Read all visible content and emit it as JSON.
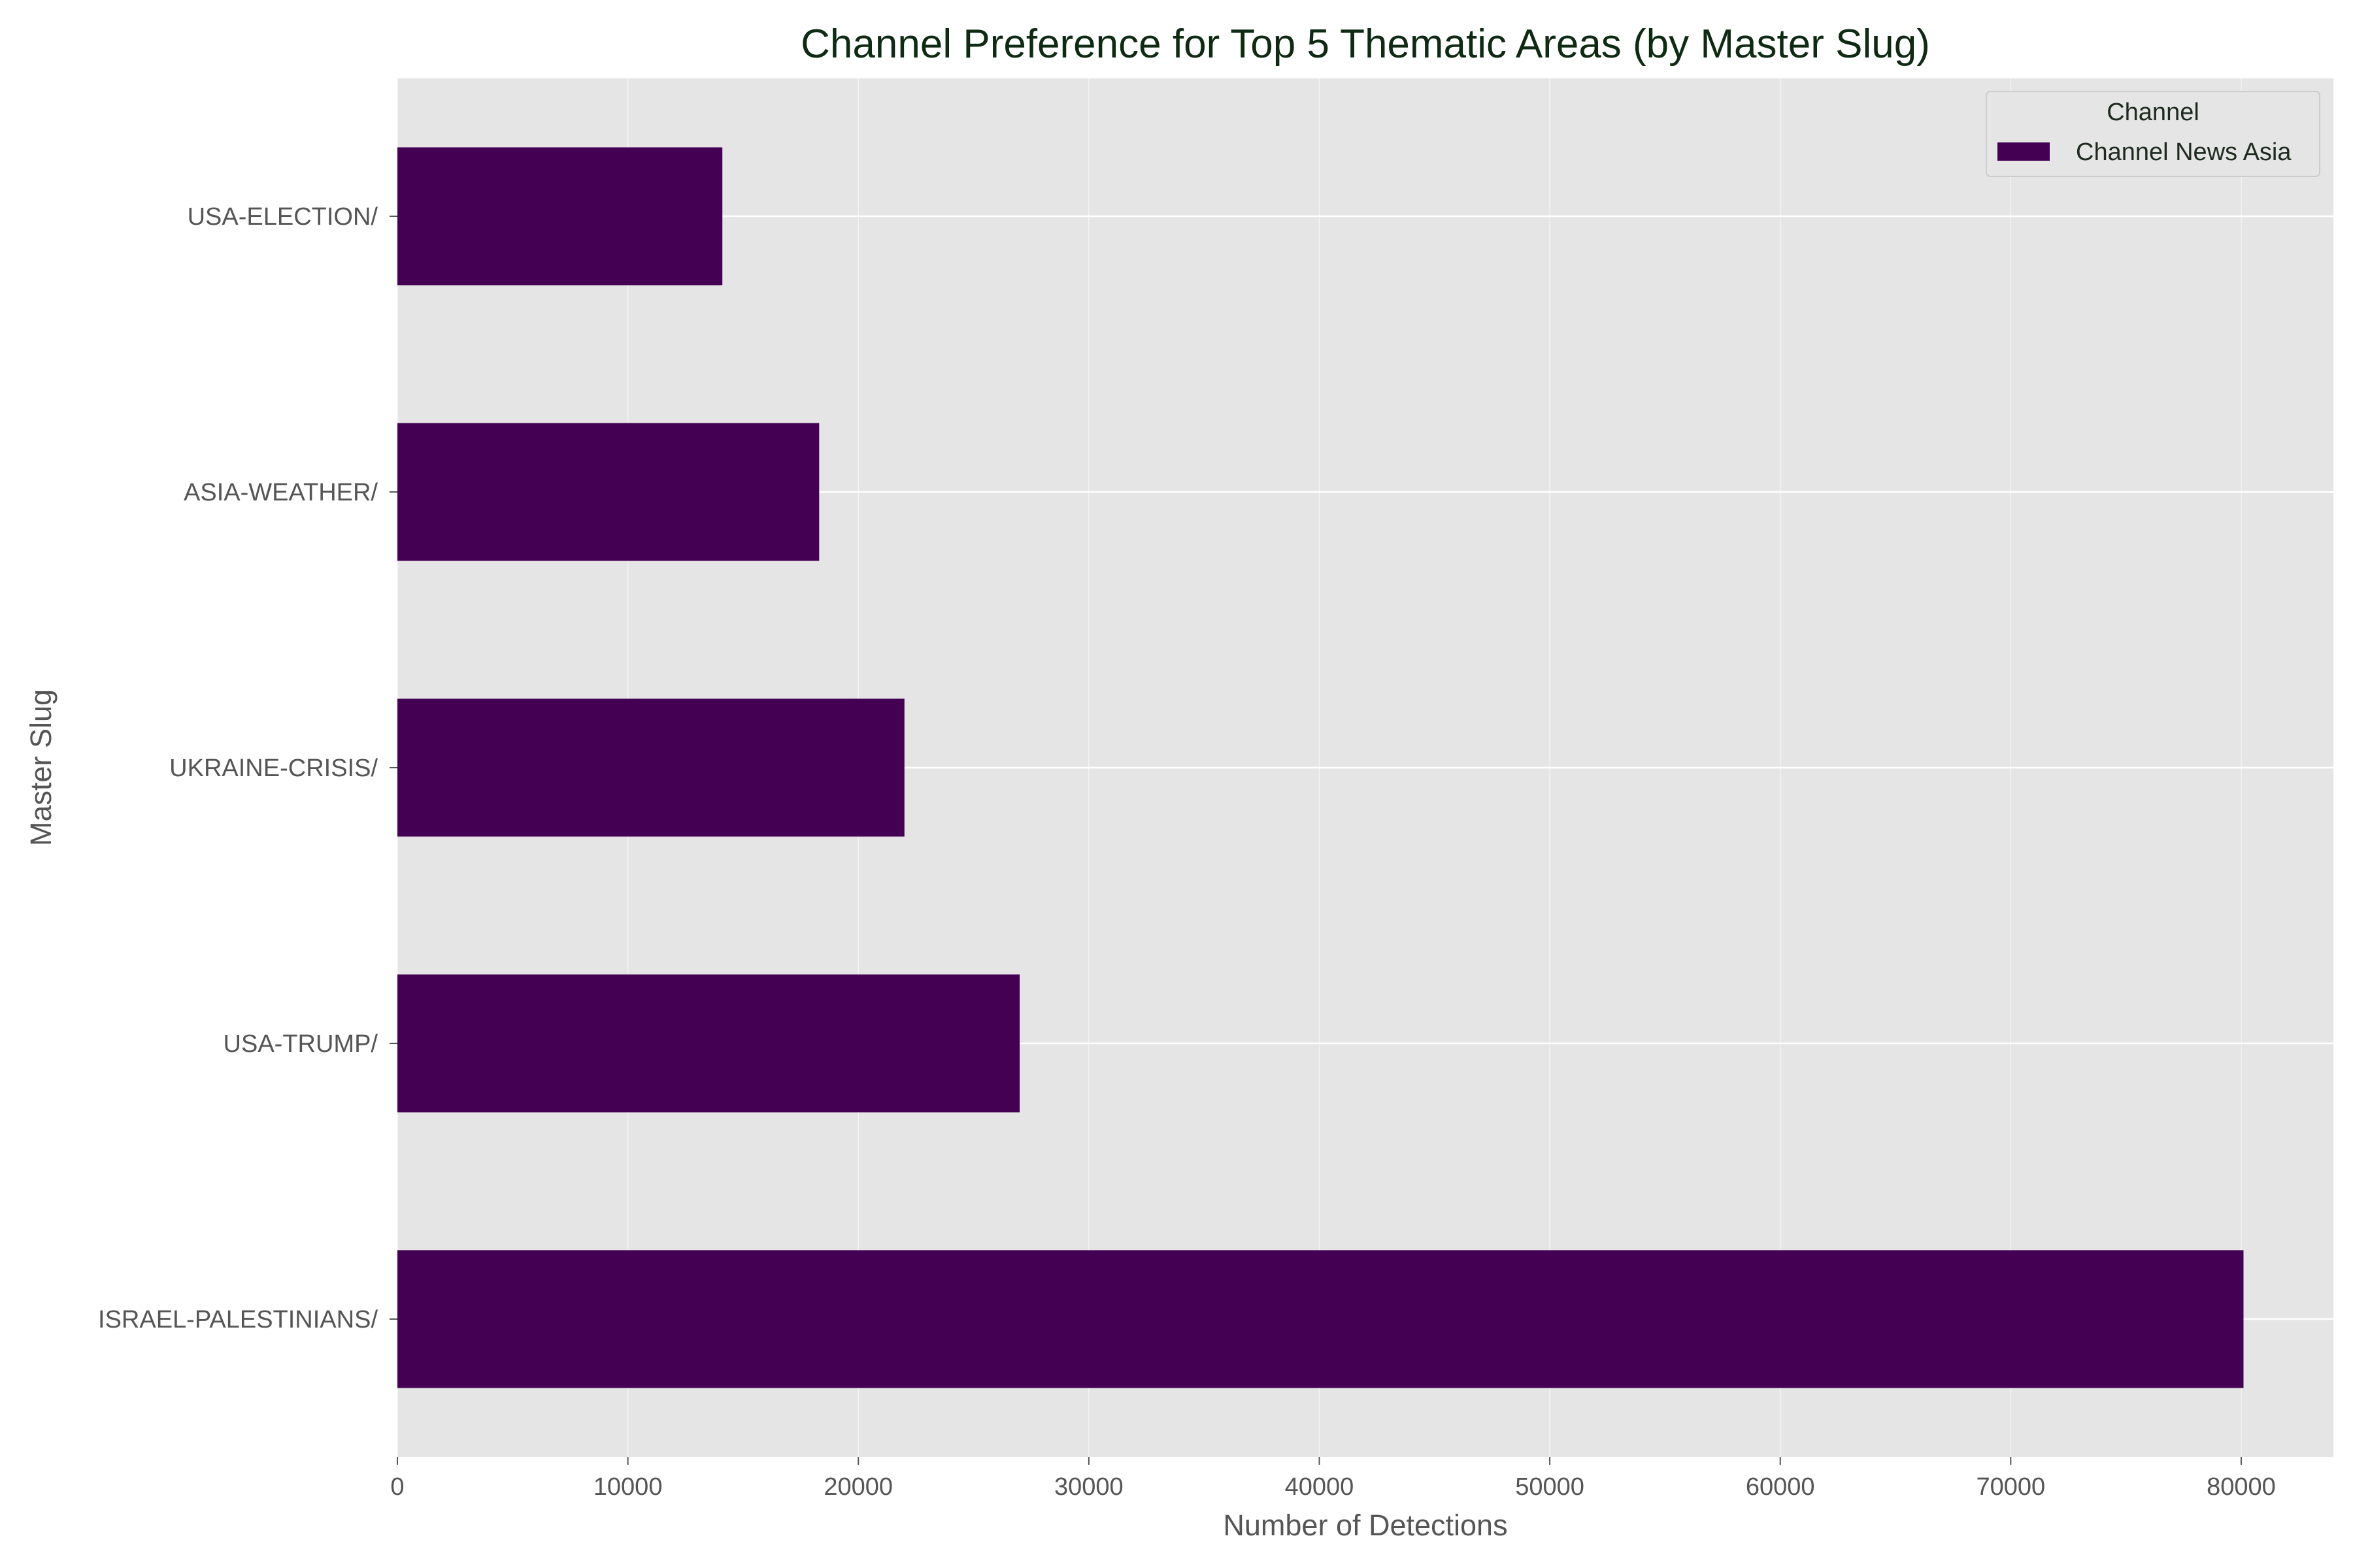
{
  "chart_data": {
    "type": "bar",
    "orientation": "horizontal",
    "title": "Channel Preference for Top 5 Thematic Areas (by Master Slug)",
    "xlabel": "Number of Detections",
    "ylabel": "Master Slug",
    "categories": [
      "ISRAEL-PALESTINIANS/",
      "USA-TRUMP/",
      "UKRAINE-CRISIS/",
      "ASIA-WEATHER/",
      "USA-ELECTION/"
    ],
    "series": [
      {
        "name": "Channel News Asia",
        "values": [
          80100,
          27000,
          22000,
          18300,
          14100
        ],
        "color": "#440154"
      }
    ],
    "xlim": [
      0,
      84000
    ],
    "xticks": [
      0,
      10000,
      20000,
      30000,
      40000,
      50000,
      60000,
      70000,
      80000
    ],
    "xtick_labels": [
      "0",
      "10000",
      "20000",
      "30000",
      "40000",
      "50000",
      "60000",
      "70000",
      "80000"
    ],
    "grid": true,
    "legend": {
      "title": "Channel",
      "placement": "top-right"
    },
    "colors": {
      "plot_background": "#e5e5e5",
      "grid": "#ffffff",
      "title": "#0f2a12"
    }
  }
}
